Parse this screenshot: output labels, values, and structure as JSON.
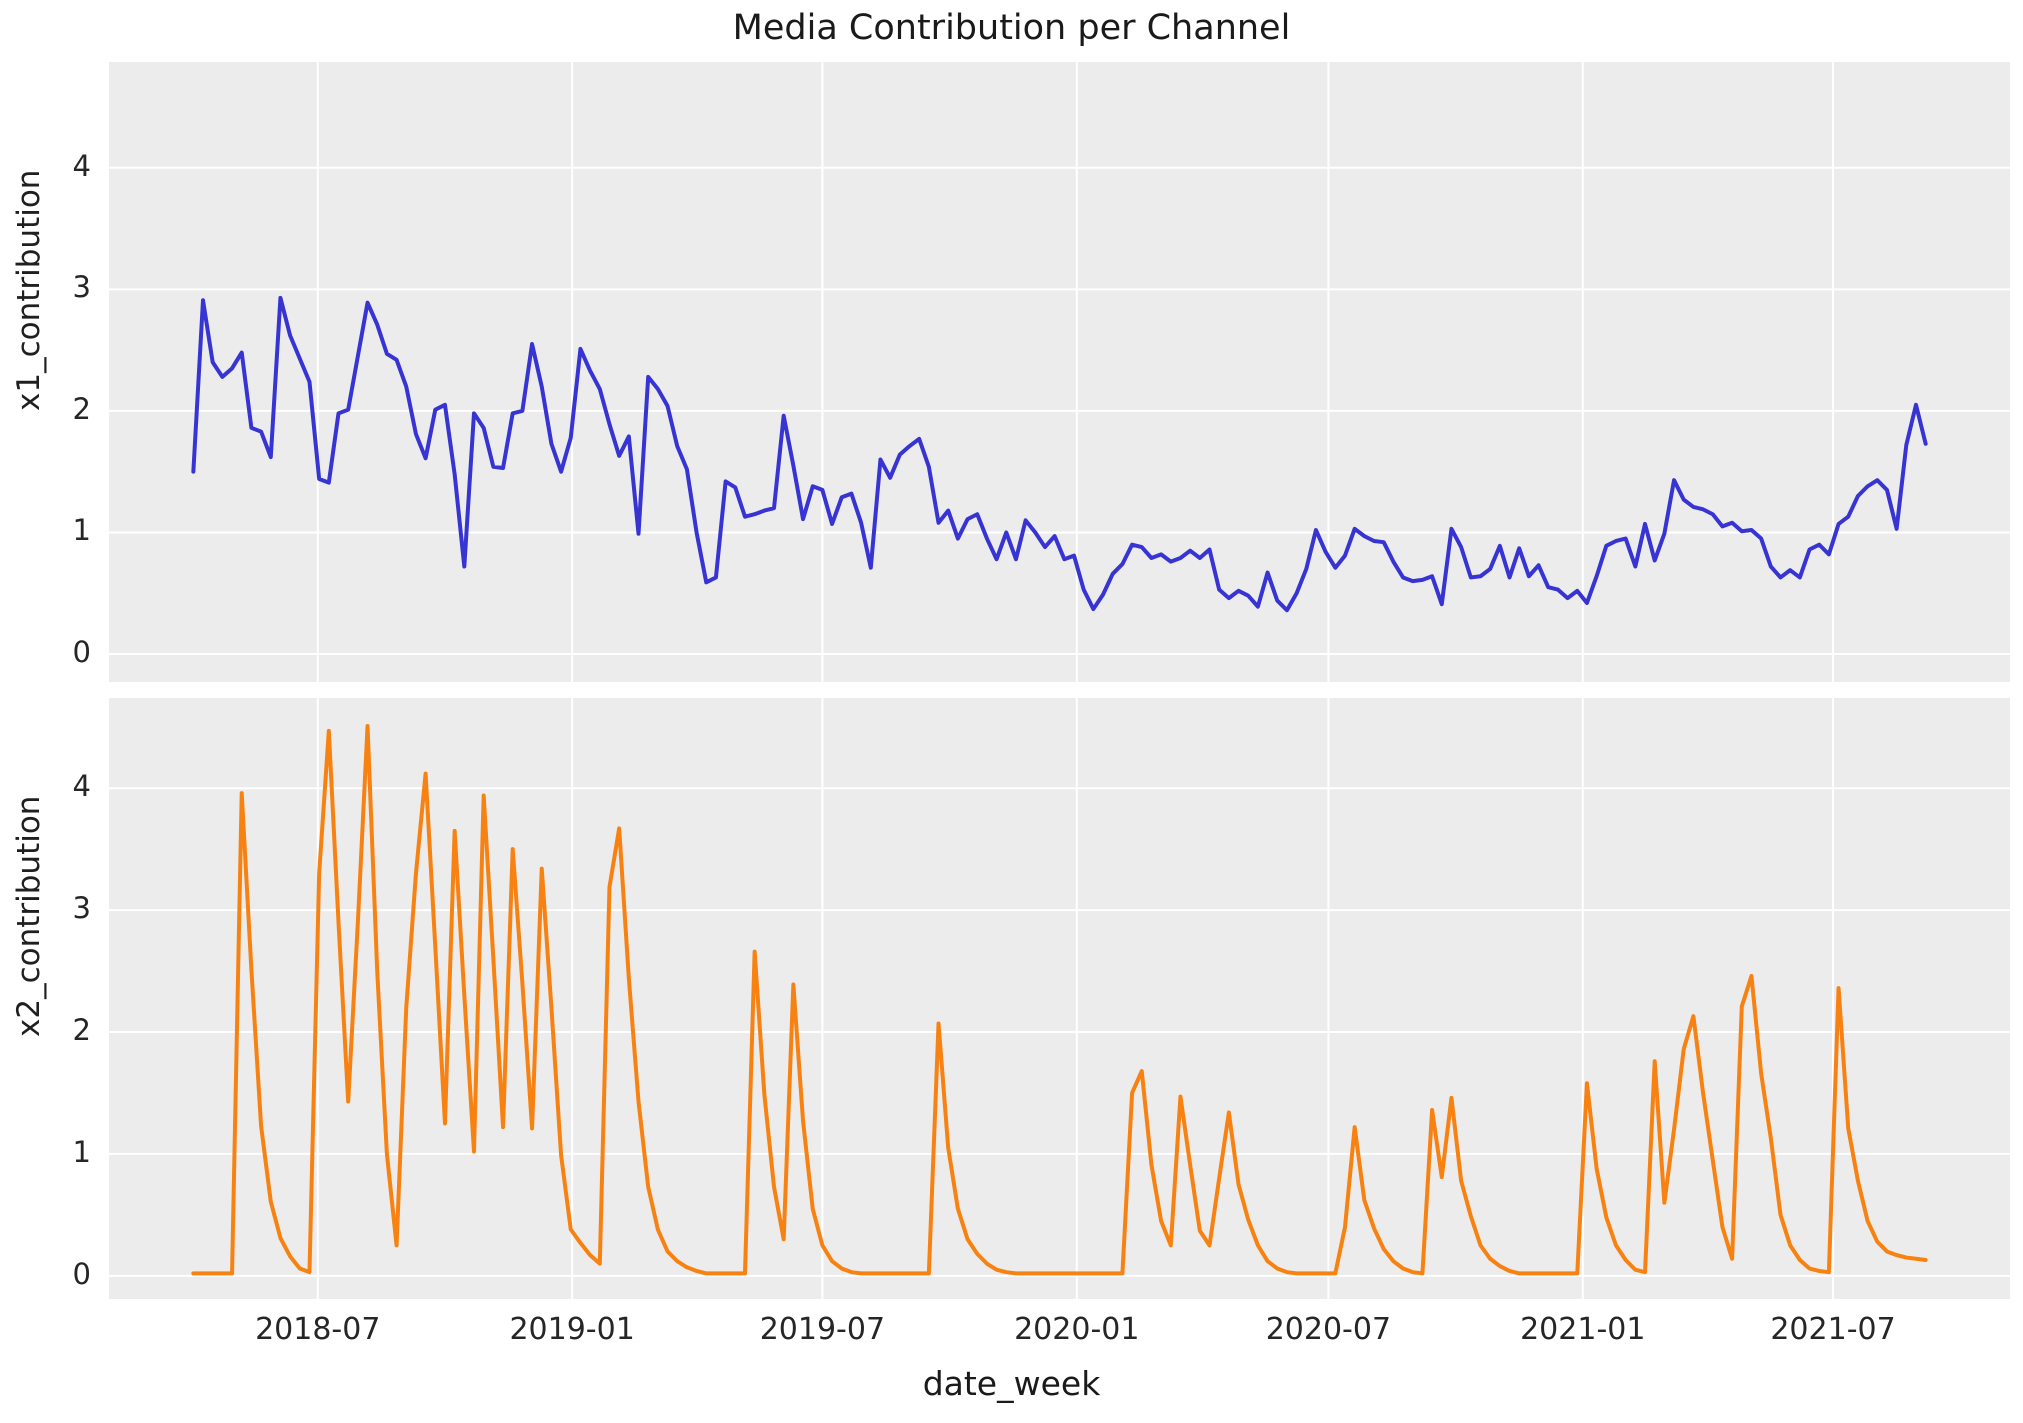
{
  "figure": {
    "title": "Media Contribution per Channel",
    "xlabel": "date_week",
    "background": "#ffffff",
    "panel_background": "#ececec",
    "grid_color": "#ffffff",
    "text_color": "#262626"
  },
  "chart_data": [
    {
      "type": "line",
      "name": "x1_contribution",
      "ylabel": "x1_contribution",
      "color": "#3734d3",
      "line_width": 4,
      "grid": true,
      "legend_position": "none",
      "x_start": "2018-04-02",
      "x_step_days": 7,
      "xlim": [
        "2018-01-31",
        "2021-11-06"
      ],
      "ylim": [
        -0.23,
        4.87
      ],
      "yticks": [
        0,
        1,
        2,
        3,
        4
      ],
      "values": [
        1.5,
        2.91,
        2.4,
        2.28,
        2.35,
        2.48,
        1.86,
        1.83,
        1.62,
        2.93,
        2.62,
        2.43,
        2.24,
        1.44,
        1.41,
        1.98,
        2.01,
        2.45,
        2.89,
        2.71,
        2.47,
        2.42,
        2.2,
        1.81,
        1.61,
        2.01,
        2.05,
        1.48,
        0.72,
        1.98,
        1.86,
        1.54,
        1.53,
        1.98,
        2.0,
        2.55,
        2.2,
        1.73,
        1.5,
        1.78,
        2.51,
        2.33,
        2.18,
        1.89,
        1.63,
        1.79,
        0.99,
        2.28,
        2.18,
        2.04,
        1.71,
        1.52,
        1.0,
        0.59,
        0.63,
        1.42,
        1.37,
        1.13,
        1.15,
        1.18,
        1.2,
        1.96,
        1.55,
        1.11,
        1.38,
        1.35,
        1.07,
        1.29,
        1.32,
        1.08,
        0.71,
        1.6,
        1.45,
        1.64,
        1.71,
        1.77,
        1.54,
        1.08,
        1.18,
        0.95,
        1.11,
        1.15,
        0.95,
        0.78,
        1.0,
        0.78,
        1.1,
        1.0,
        0.88,
        0.97,
        0.78,
        0.81,
        0.53,
        0.37,
        0.49,
        0.66,
        0.74,
        0.9,
        0.88,
        0.79,
        0.82,
        0.76,
        0.79,
        0.85,
        0.79,
        0.86,
        0.53,
        0.46,
        0.52,
        0.48,
        0.39,
        0.67,
        0.44,
        0.36,
        0.5,
        0.7,
        1.02,
        0.84,
        0.71,
        0.81,
        1.03,
        0.97,
        0.93,
        0.92,
        0.76,
        0.63,
        0.6,
        0.61,
        0.64,
        0.41,
        1.03,
        0.88,
        0.63,
        0.64,
        0.7,
        0.89,
        0.63,
        0.87,
        0.64,
        0.73,
        0.55,
        0.53,
        0.46,
        0.52,
        0.42,
        0.64,
        0.89,
        0.93,
        0.95,
        0.72,
        1.07,
        0.77,
        0.99,
        1.43,
        1.27,
        1.21,
        1.19,
        1.15,
        1.05,
        1.08,
        1.01,
        1.02,
        0.95,
        0.72,
        0.63,
        0.69,
        0.63,
        0.86,
        0.9,
        0.82,
        1.07,
        1.13,
        1.3,
        1.38,
        1.43,
        1.35,
        1.03,
        1.72,
        2.05,
        1.73
      ]
    },
    {
      "type": "line",
      "name": "x2_contribution",
      "ylabel": "x2_contribution",
      "color": "#f78212",
      "line_width": 4,
      "grid": true,
      "legend_position": "none",
      "x_start": "2018-04-02",
      "x_step_days": 7,
      "xlim": [
        "2018-01-31",
        "2021-11-06"
      ],
      "ylim": [
        -0.19,
        4.74
      ],
      "yticks": [
        0,
        1,
        2,
        3,
        4
      ],
      "values": [
        0.02,
        0.02,
        0.02,
        0.02,
        0.02,
        3.96,
        2.51,
        1.23,
        0.61,
        0.31,
        0.16,
        0.06,
        0.03,
        3.3,
        4.47,
        2.9,
        1.43,
        2.9,
        4.51,
        2.5,
        1.0,
        0.25,
        2.2,
        3.3,
        4.12,
        2.7,
        1.25,
        3.65,
        2.3,
        1.02,
        3.94,
        2.6,
        1.22,
        3.5,
        2.4,
        1.21,
        3.34,
        2.2,
        0.99,
        0.38,
        0.27,
        0.17,
        0.1,
        3.19,
        3.67,
        2.44,
        1.43,
        0.73,
        0.38,
        0.2,
        0.12,
        0.07,
        0.04,
        0.02,
        0.02,
        0.02,
        0.02,
        0.02,
        2.66,
        1.49,
        0.73,
        0.3,
        2.39,
        1.27,
        0.55,
        0.25,
        0.12,
        0.06,
        0.03,
        0.02,
        0.02,
        0.02,
        0.02,
        0.02,
        0.02,
        0.02,
        0.02,
        2.07,
        1.05,
        0.55,
        0.3,
        0.18,
        0.1,
        0.05,
        0.03,
        0.02,
        0.02,
        0.02,
        0.02,
        0.02,
        0.02,
        0.02,
        0.02,
        0.02,
        0.02,
        0.02,
        0.02,
        1.5,
        1.68,
        0.91,
        0.45,
        0.25,
        1.47,
        0.91,
        0.37,
        0.25,
        0.8,
        1.34,
        0.75,
        0.46,
        0.25,
        0.12,
        0.06,
        0.03,
        0.02,
        0.02,
        0.02,
        0.02,
        0.02,
        0.4,
        1.22,
        0.62,
        0.39,
        0.22,
        0.12,
        0.06,
        0.03,
        0.02,
        1.36,
        0.81,
        1.46,
        0.78,
        0.49,
        0.25,
        0.14,
        0.08,
        0.04,
        0.02,
        0.02,
        0.02,
        0.02,
        0.02,
        0.02,
        0.02,
        1.58,
        0.88,
        0.48,
        0.25,
        0.13,
        0.05,
        0.03,
        1.76,
        0.6,
        1.2,
        1.86,
        2.13,
        1.5,
        0.95,
        0.4,
        0.14,
        2.21,
        2.46,
        1.66,
        1.13,
        0.5,
        0.25,
        0.13,
        0.06,
        0.04,
        0.03,
        2.36,
        1.21,
        0.78,
        0.45,
        0.28,
        0.2,
        0.17,
        0.15,
        0.14,
        0.13
      ]
    }
  ],
  "xticks": [
    {
      "date": "2018-07-01",
      "label": "2018-07"
    },
    {
      "date": "2019-01-01",
      "label": "2019-01"
    },
    {
      "date": "2019-07-01",
      "label": "2019-07"
    },
    {
      "date": "2020-01-01",
      "label": "2020-01"
    },
    {
      "date": "2020-07-01",
      "label": "2020-07"
    },
    {
      "date": "2021-01-01",
      "label": "2021-01"
    },
    {
      "date": "2021-07-01",
      "label": "2021-07"
    }
  ]
}
